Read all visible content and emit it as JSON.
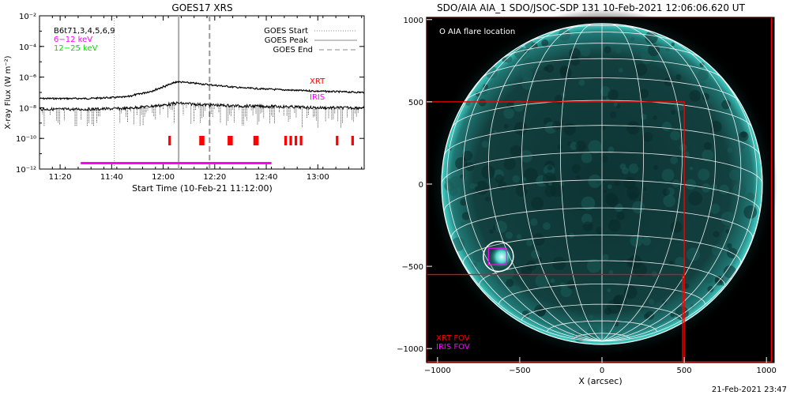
{
  "goes": {
    "title": "GOES17 XRS",
    "xlabel": "Start Time (10-Feb-21 11:12:00)",
    "ylabel": "X-ray Flux (W m⁻²)",
    "note_black": "B6t71,3,4,5,6,9",
    "note_magenta": "6−12 keV",
    "note_green": "12−25 keV",
    "legend": [
      {
        "label": "GOES Start",
        "style": "dotted"
      },
      {
        "label": "GOES Peak",
        "style": "solid"
      },
      {
        "label": "GOES End",
        "style": "dashed"
      }
    ],
    "xrt_label": "XRT",
    "iris_label": "IRIS"
  },
  "aia": {
    "title": "SDO/AIA AIA_1 SDO/JSOC-SDP 131 10-Feb-2021 12:06:06.620 UT",
    "flare_legend": "O AIA flare location",
    "xlabel": "X (arcsec)",
    "xrt_fov": "XRT FOV",
    "iris_fov": "IRIS FOV",
    "timestamp": "21-Feb-2021 23:47"
  },
  "colors": {
    "xrt": "#ff0000",
    "iris": "#ff00ff",
    "green": "#00ff00",
    "sun_limb": "#00c8c0",
    "grid": "#ffffff"
  },
  "chart_data": [
    {
      "type": "line",
      "title": "GOES17 XRS",
      "xlabel": "Start Time (10-Feb-21 11:12:00)",
      "ylabel": "X-ray Flux (W m⁻²)",
      "yscale": "log",
      "xlim": [
        "11:12",
        "13:18"
      ],
      "ylim": [
        1e-12,
        0.01
      ],
      "x_ticks": [
        "11:20",
        "11:40",
        "12:00",
        "12:20",
        "12:40",
        "13:00"
      ],
      "y_ticks": [
        "10⁻¹²",
        "10⁻¹⁰",
        "10⁻⁸",
        "10⁻⁶",
        "10⁻⁴",
        "10⁻²"
      ],
      "series": [
        {
          "name": "",
          "x": [
            "11:12",
            "11:30",
            "11:45",
            "11:55",
            "12:05",
            "12:15",
            "12:30",
            "12:45",
            "13:00",
            "13:18"
          ],
          "values": [
            4e-08,
            4e-08,
            5e-08,
            1.2e-07,
            5e-07,
            3.5e-07,
            2e-07,
            1.5e-07,
            1.2e-07,
            1e-07
          ]
        },
        {
          "name": "",
          "x": [
            "11:12",
            "11:30",
            "11:45",
            "12:00",
            "12:05",
            "12:15",
            "12:30",
            "12:45",
            "13:00",
            "13:18"
          ],
          "values": [
            8e-09,
            8e-09,
            9e-09,
            1.5e-08,
            2e-08,
            1.6e-08,
            1.3e-08,
            1.2e-08,
            1e-08,
            1e-08
          ]
        }
      ],
      "markers": {
        "goes_start": "11:41",
        "goes_peak": "12:06",
        "goes_end": "12:18"
      },
      "xrt_intervals": [
        [
          "12:02",
          "12:03"
        ],
        [
          "12:14",
          "12:16"
        ],
        [
          "12:25",
          "12:27"
        ],
        [
          "12:35",
          "12:37"
        ],
        [
          "12:47",
          "12:48"
        ],
        [
          "12:49",
          "12:50"
        ],
        [
          "12:51",
          "12:52"
        ],
        [
          "12:53",
          "12:54"
        ],
        [
          "13:07",
          "13:08"
        ],
        [
          "13:13",
          "13:14"
        ],
        [
          "13:18",
          "13:18"
        ]
      ],
      "iris_interval": [
        "11:28",
        "12:42"
      ]
    },
    {
      "type": "scatter",
      "title": "SDO/AIA AIA_1 SDO/JSOC-SDP 131 10-Feb-2021 12:06:06.620 UT",
      "xlabel": "X (arcsec)",
      "ylabel": "",
      "xlim": [
        -1100,
        1100
      ],
      "ylim": [
        -1100,
        1050
      ],
      "x_ticks": [
        -1000,
        -500,
        0,
        500,
        1000
      ],
      "y_ticks": [
        -1000,
        -500,
        0,
        500,
        1000
      ],
      "solar_radius": 975,
      "flare_location": {
        "x": -630,
        "y": -440
      },
      "iris_fov": {
        "x0": -690,
        "x1": -580,
        "y0": -490,
        "y1": -390
      },
      "xrt_fov_boxes": [
        {
          "x0": -1100,
          "x1": 1030,
          "y0": -1080,
          "y1": 1020
        },
        {
          "x0": -1100,
          "x1": 500,
          "y0": -1080,
          "y1": 500
        },
        {
          "x0": -1100,
          "x1": 490,
          "y0": -1080,
          "y1": -550
        }
      ]
    }
  ]
}
